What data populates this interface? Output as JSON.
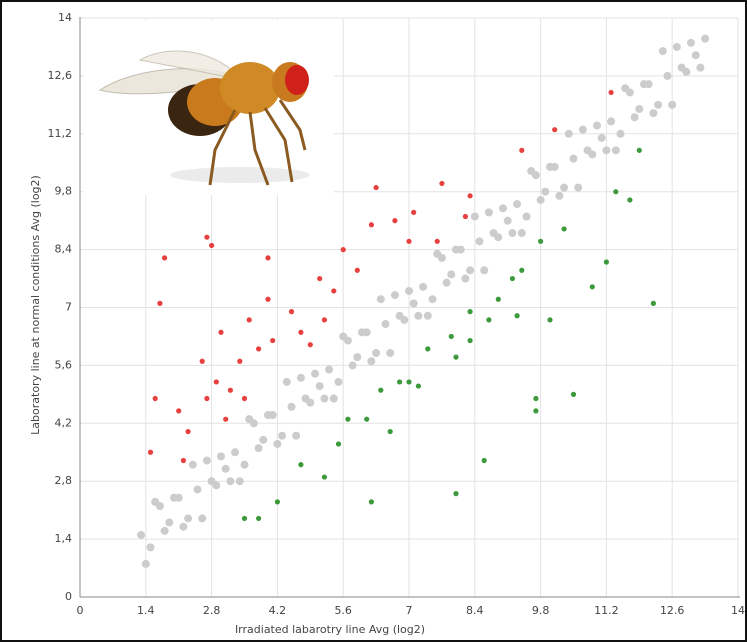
{
  "chart_data": {
    "type": "scatter",
    "xlabel": "Irradiated labarotry line Avg (log2)",
    "ylabel": "Laboratory line at normal conditions Avg (log2)",
    "xlim": [
      0,
      14
    ],
    "ylim": [
      0,
      14
    ],
    "xticks": [
      0,
      1.4,
      2.8,
      4.2,
      5.6,
      7,
      8.4,
      9.8,
      11.2,
      12.6,
      14
    ],
    "yticks": [
      0,
      {
        "value": 1.4,
        "label": "1,4"
      },
      {
        "value": 2.8,
        "label": "2,8"
      },
      {
        "value": 4.2,
        "label": "4,2"
      },
      {
        "value": 5.6,
        "label": "5,6"
      },
      7,
      {
        "value": 8.4,
        "label": "8,4"
      },
      {
        "value": 9.8,
        "label": "9,8"
      },
      {
        "value": 11.2,
        "label": "11,2"
      },
      {
        "value": 12.6,
        "label": "12,6"
      },
      14
    ],
    "grid": true,
    "series": [
      {
        "color": "#cccccc",
        "x": [
          1.3,
          1.5,
          1.7,
          1.9,
          2.1,
          2.3,
          2.5,
          2.7,
          2.9,
          3.1,
          3.3,
          3.5,
          3.7,
          3.9,
          4.1,
          4.3,
          4.5,
          4.7,
          4.9,
          5.1,
          5.3,
          5.5,
          5.7,
          5.9,
          6.1,
          6.3,
          6.5,
          6.7,
          6.9,
          7.1,
          7.3,
          7.5,
          7.7,
          7.9,
          8.1,
          8.3,
          8.5,
          8.7,
          8.9,
          9.1,
          9.3,
          9.5,
          9.7,
          9.9,
          10.1,
          10.3,
          10.5,
          10.7,
          10.9,
          11.1,
          11.3,
          11.5,
          11.7,
          11.9,
          12.1,
          12.3,
          12.5,
          12.7,
          12.9,
          13.1,
          13.3,
          1.4,
          1.6,
          1.8,
          2.0,
          2.2,
          2.4,
          2.6,
          2.8,
          3.0,
          3.2,
          3.4,
          3.6,
          3.8,
          4.0,
          4.2,
          4.4,
          4.6,
          4.8,
          5.0,
          5.2,
          5.4,
          5.6,
          5.8,
          6.0,
          6.2,
          6.4,
          6.6,
          6.8,
          7.0,
          7.2,
          7.4,
          7.6,
          7.8,
          8.0,
          8.2,
          8.4,
          8.6,
          8.8,
          9.0,
          9.2,
          9.4,
          9.6,
          9.8,
          10.0,
          10.2,
          10.4,
          10.6,
          10.8,
          11.0,
          11.2,
          11.4,
          11.6,
          11.8,
          12.0,
          12.2,
          12.4,
          12.6,
          12.8,
          13.0,
          13.2
        ],
        "y": [
          1.5,
          1.2,
          2.2,
          1.8,
          2.4,
          1.9,
          2.6,
          3.3,
          2.7,
          3.1,
          3.5,
          3.2,
          4.2,
          3.8,
          4.4,
          3.9,
          4.6,
          5.3,
          4.7,
          5.1,
          5.5,
          5.2,
          6.2,
          5.8,
          6.4,
          5.9,
          6.6,
          7.3,
          6.7,
          7.1,
          7.5,
          7.2,
          8.2,
          7.8,
          8.4,
          7.9,
          8.6,
          9.3,
          8.7,
          9.1,
          9.5,
          9.2,
          10.2,
          9.8,
          10.4,
          9.9,
          10.6,
          11.3,
          10.7,
          11.1,
          11.5,
          11.2,
          12.2,
          11.8,
          12.4,
          11.9,
          12.6,
          13.3,
          12.7,
          13.1,
          13.5,
          0.8,
          2.3,
          1.6,
          2.4,
          1.7,
          3.2,
          1.9,
          2.8,
          3.4,
          2.8,
          2.8,
          4.3,
          3.6,
          4.4,
          3.7,
          5.2,
          3.9,
          4.8,
          5.4,
          4.8,
          4.8,
          6.3,
          5.6,
          6.4,
          5.7,
          7.2,
          5.9,
          6.8,
          7.4,
          6.8,
          6.8,
          8.3,
          7.6,
          8.4,
          7.7,
          9.2,
          7.9,
          8.8,
          9.4,
          8.8,
          8.8,
          10.3,
          9.6,
          10.4,
          9.7,
          11.2,
          9.9,
          10.8,
          11.4,
          10.8,
          10.8,
          12.3,
          11.6,
          12.4,
          11.7,
          13.2,
          11.9,
          12.8,
          13.4,
          12.8
        ]
      },
      {
        "color": "#e8403f",
        "x": [
          1.8,
          1.7,
          2.7,
          2.8,
          1.5,
          1.6,
          2.2,
          2.3,
          2.7,
          2.9,
          3.0,
          3.4,
          3.6,
          4.0,
          3.8,
          4.1,
          4.5,
          4.7,
          5.1,
          5.2,
          5.6,
          5.4,
          6.2,
          6.3,
          6.7,
          7.0,
          7.1,
          7.7,
          7.6,
          8.2,
          8.3,
          9.4,
          10.1,
          11.3,
          3.2,
          2.1,
          2.6,
          4.0,
          4.9,
          5.9,
          3.5,
          3.1
        ],
        "y": [
          8.2,
          7.1,
          8.7,
          8.5,
          3.5,
          4.8,
          3.3,
          4.0,
          4.8,
          5.2,
          6.4,
          5.7,
          6.7,
          8.2,
          6.0,
          6.2,
          6.9,
          6.4,
          7.7,
          6.7,
          8.4,
          7.4,
          9.0,
          9.9,
          9.1,
          8.6,
          9.3,
          10.0,
          8.6,
          9.2,
          9.7,
          10.8,
          11.3,
          12.2,
          5.0,
          4.5,
          5.7,
          7.2,
          6.1,
          7.9,
          4.8,
          4.3
        ]
      },
      {
        "color": "#3c9a3c",
        "x": [
          3.5,
          3.8,
          4.2,
          4.7,
          5.2,
          5.5,
          6.1,
          6.2,
          6.4,
          6.8,
          7.0,
          7.4,
          7.9,
          8.0,
          8.3,
          8.6,
          8.7,
          8.9,
          9.2,
          9.4,
          9.7,
          9.7,
          9.8,
          10.0,
          10.3,
          10.5,
          10.9,
          11.2,
          11.4,
          11.7,
          11.9,
          12.2,
          7.2,
          8.0,
          8.3,
          5.7,
          6.6,
          9.3
        ],
        "y": [
          1.9,
          1.9,
          2.3,
          3.2,
          2.9,
          3.7,
          4.3,
          2.3,
          5.0,
          5.2,
          5.2,
          6.0,
          6.3,
          2.5,
          6.9,
          3.3,
          6.7,
          7.2,
          7.7,
          7.9,
          4.8,
          4.5,
          8.6,
          6.7,
          8.9,
          4.9,
          7.5,
          8.1,
          9.8,
          9.6,
          10.8,
          7.1,
          5.1,
          5.8,
          6.2,
          4.3,
          4.0,
          6.8
        ]
      }
    ]
  }
}
